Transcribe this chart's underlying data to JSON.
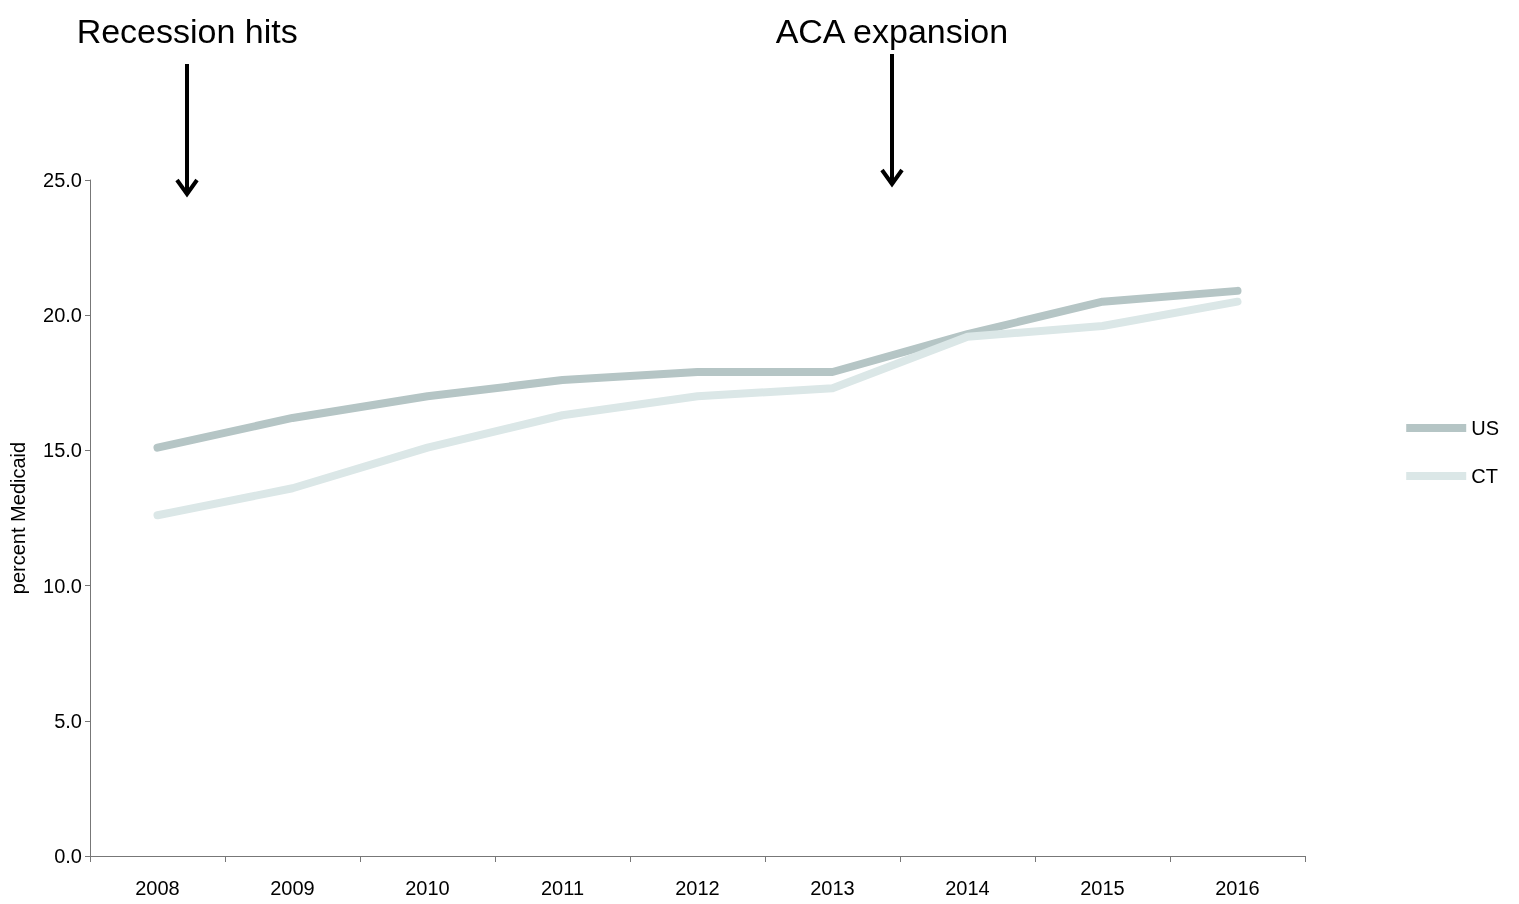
{
  "chart_data": {
    "type": "line",
    "ylabel": "percent Medicaid",
    "categories": [
      "2008",
      "2009",
      "2010",
      "2011",
      "2012",
      "2013",
      "2014",
      "2015",
      "2016"
    ],
    "series": [
      {
        "name": "US",
        "color": "#b5c5c5",
        "values": [
          15.1,
          16.2,
          17.0,
          17.6,
          17.9,
          17.9,
          19.3,
          20.5,
          20.9
        ]
      },
      {
        "name": "CT",
        "color": "#dbe7e7",
        "values": [
          12.6,
          13.6,
          15.1,
          16.3,
          17.0,
          17.3,
          19.2,
          19.6,
          20.5
        ]
      }
    ],
    "ylim": [
      0,
      25
    ],
    "yticks": [
      {
        "value": 0,
        "label": "0.0"
      },
      {
        "value": 5,
        "label": "5.0"
      },
      {
        "value": 10,
        "label": "10.0"
      },
      {
        "value": 15,
        "label": "15.0"
      },
      {
        "value": 20,
        "label": "20.0"
      },
      {
        "value": 25,
        "label": "25.0"
      }
    ],
    "annotations": [
      "Recession hits",
      "ACA expansion"
    ],
    "grid": false,
    "legend": "right",
    "marker": "none",
    "line_style": "solid"
  }
}
